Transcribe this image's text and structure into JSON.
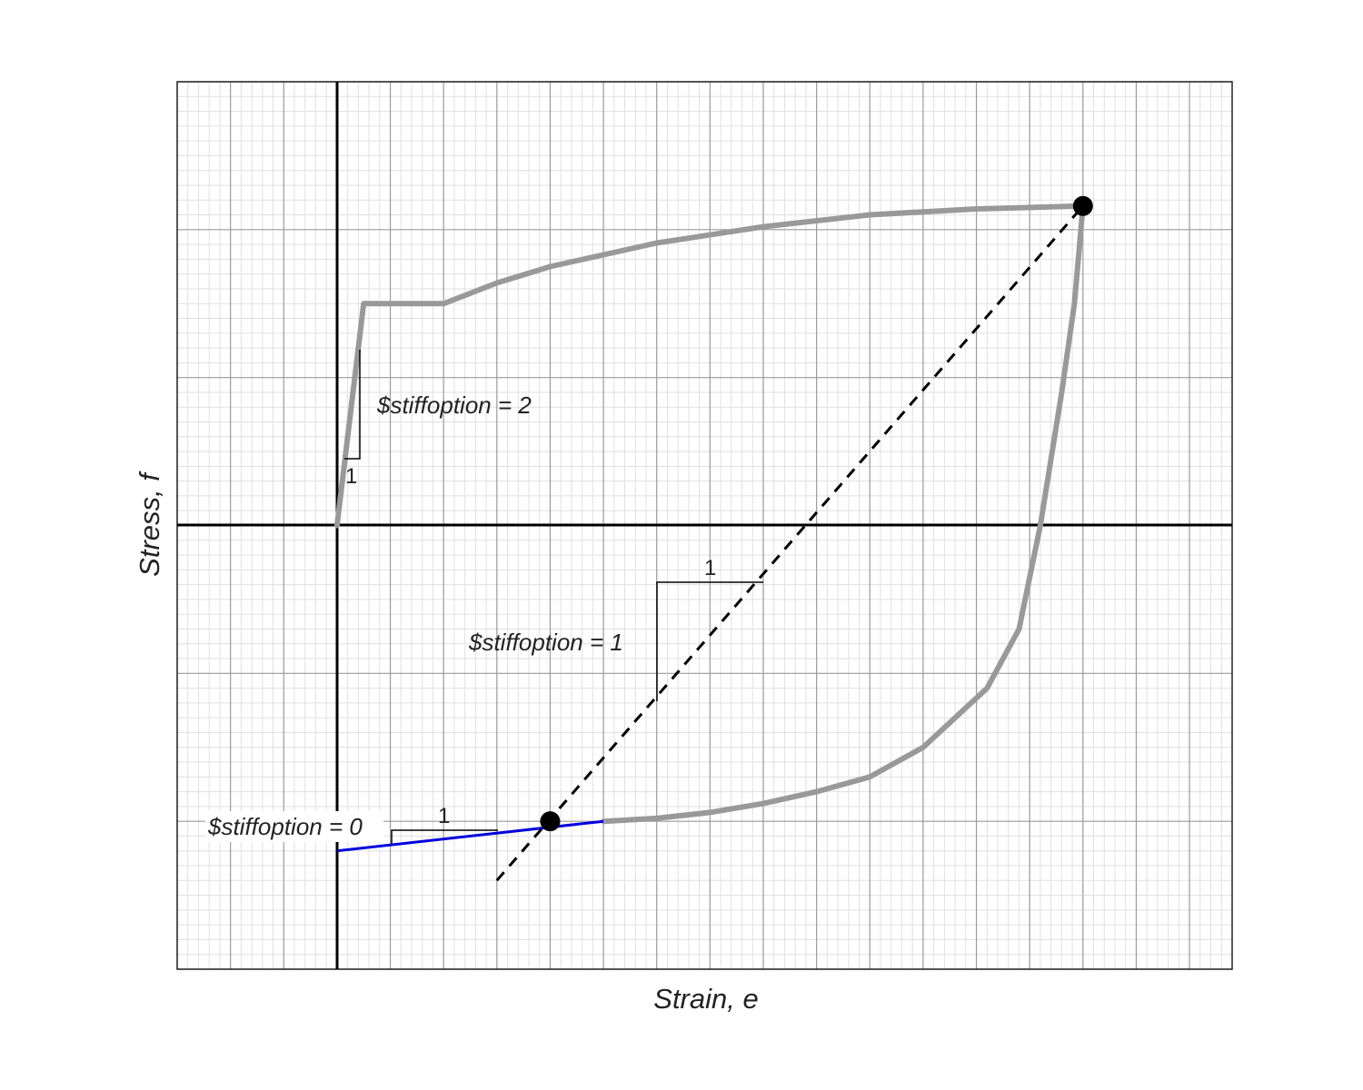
{
  "figure": {
    "x_axis_label": "Strain, e",
    "y_axis_label": "Stress, f",
    "annotations": {
      "stiff2": "$stiffoption = 2",
      "stiff1": "$stiffoption = 1",
      "stiff0": "$stiffoption = 0",
      "slope_unit": "1"
    }
  },
  "chart_data": {
    "type": "line",
    "x_range": [
      -1.5,
      8.4
    ],
    "y_range": [
      -3.0,
      3.0
    ],
    "grid": true,
    "minor_grid": true,
    "axes_through_origin": true,
    "colors": {
      "stress_path": "#999999",
      "tangent": "#0000dd",
      "secant": "#000000",
      "axes": "#000000"
    },
    "series": [
      {
        "style": "solid-gray-thick",
        "points": [
          [
            0,
            0
          ],
          [
            0.25,
            1.5
          ],
          [
            1.0,
            1.5
          ],
          [
            1.5,
            1.64
          ],
          [
            2.0,
            1.75
          ],
          [
            3.0,
            1.91
          ],
          [
            4.0,
            2.02
          ],
          [
            5.0,
            2.1
          ],
          [
            6.0,
            2.14
          ],
          [
            7.0,
            2.16
          ]
        ]
      },
      {
        "style": "solid-gray-thick",
        "points": [
          [
            7.0,
            2.16
          ],
          [
            6.92,
            1.5
          ],
          [
            6.8,
            0.9
          ],
          [
            6.6,
            0.0
          ],
          [
            6.4,
            -0.7
          ],
          [
            6.1,
            -1.1
          ],
          [
            5.8,
            -1.3
          ],
          [
            5.5,
            -1.5
          ],
          [
            5.0,
            -1.7
          ],
          [
            4.5,
            -1.8
          ],
          [
            4.0,
            -1.88
          ],
          [
            3.5,
            -1.94
          ],
          [
            3.0,
            -1.98
          ],
          [
            2.5,
            -2.0
          ]
        ]
      },
      {
        "style": "tangent-blue",
        "points": [
          [
            0,
            -2.2
          ],
          [
            2.5,
            -2.0
          ]
        ]
      },
      {
        "style": "secant-dashed",
        "points": [
          [
            1.5,
            -2.4
          ],
          [
            7.0,
            2.16
          ]
        ]
      }
    ],
    "markers": [
      [
        2.0,
        -2.0
      ],
      [
        7.0,
        2.16
      ]
    ]
  }
}
